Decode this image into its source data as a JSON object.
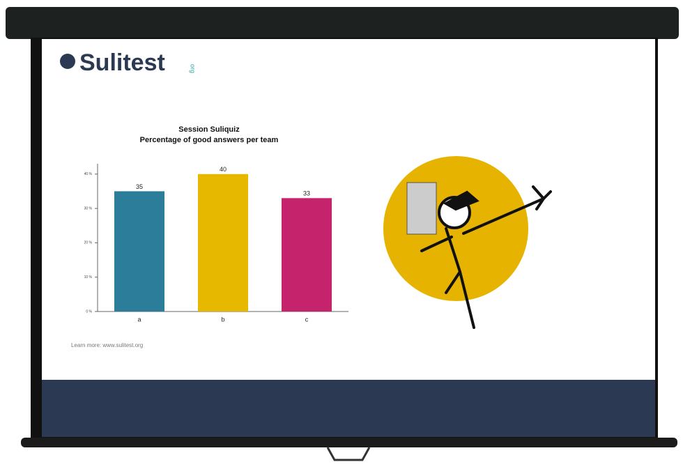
{
  "logo": {
    "name": "Sulitest",
    "suffix": "org"
  },
  "footer": "Learn more: www.sulitest.org",
  "chart_data": {
    "type": "bar",
    "title": "Session Suliquiz",
    "subtitle": "Percentage of good answers per team",
    "categories": [
      "a",
      "b",
      "c"
    ],
    "values": [
      35,
      40,
      33
    ],
    "colors": [
      "#2b7d9a",
      "#e6b800",
      "#c6236d"
    ],
    "ylim": [
      0,
      43
    ],
    "yticks": [
      {
        "value": 0,
        "label": "0 %"
      },
      {
        "value": 10,
        "label": "10 %"
      },
      {
        "value": 20,
        "label": "20 %"
      },
      {
        "value": 30,
        "label": "30 %"
      },
      {
        "value": 40,
        "label": "40 %"
      }
    ],
    "grid": false
  }
}
